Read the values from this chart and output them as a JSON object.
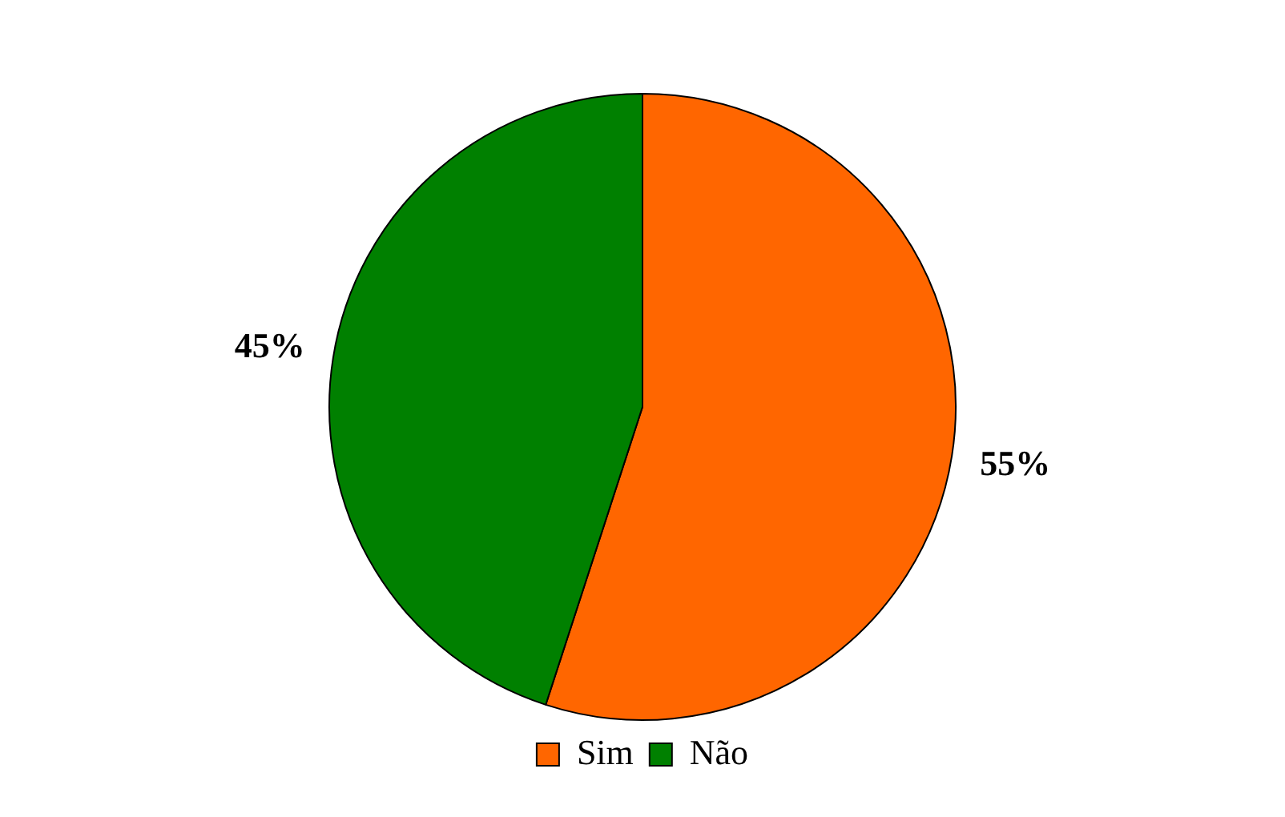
{
  "chart_data": {
    "type": "pie",
    "categories": [
      "Sim",
      "Não"
    ],
    "values": [
      55,
      45
    ],
    "colors": [
      "#ff6600",
      "#008000"
    ],
    "value_labels": [
      "55%",
      "45%"
    ],
    "legend": "bottom"
  }
}
